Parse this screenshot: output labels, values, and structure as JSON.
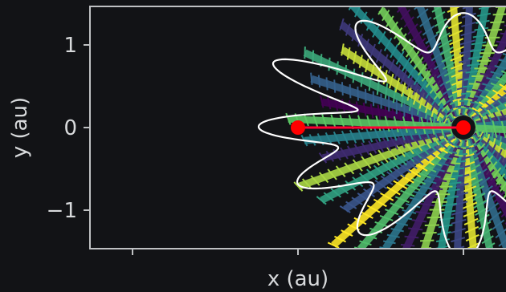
{
  "chart_data": {
    "type": "scatter",
    "title": "",
    "xlabel": "x (au)",
    "ylabel": "y (au)",
    "xlim": [
      -2.0,
      2.2
    ],
    "ylim": [
      -1.5,
      1.45
    ],
    "x_ticks": [
      -1,
      0,
      1
    ],
    "y_ticks": [
      1,
      0,
      -1
    ],
    "y_tick_labels": [
      "1",
      "0",
      "−1"
    ],
    "grid": false,
    "legend": "none",
    "colormap": [
      "#440154",
      "#3b528b",
      "#21918c",
      "#5ec962",
      "#fde725"
    ],
    "orbit_curve": {
      "color": "#ffffff",
      "center": [
        1.0,
        0.0
      ],
      "base_radius": 1.0,
      "lobes": 12,
      "lobe_amplitude": 0.35
    },
    "trail_bands": {
      "count": 24,
      "center": [
        1.0,
        0.0
      ],
      "inner_radius": 0.08,
      "outer_radius": 1.06
    },
    "bodies": [
      {
        "name": "",
        "x": 0.0,
        "y": 0.0,
        "color": "#ff0000"
      },
      {
        "name": "",
        "x": 1.0,
        "y": 0.0,
        "color": "#ff0000"
      }
    ],
    "connector_color": "#ff0033"
  },
  "colors": {
    "background": "#121316",
    "axes_frame": "#bfc1c3",
    "text": "#d8dadc"
  }
}
